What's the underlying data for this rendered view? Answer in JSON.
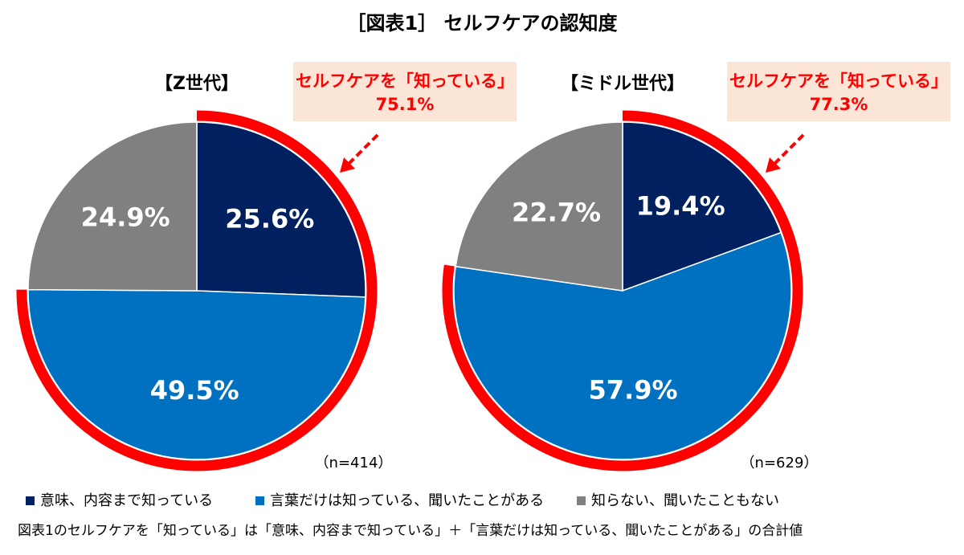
{
  "title": "［図表1］ セルフケアの認知度",
  "chart_data": [
    {
      "type": "pie",
      "title": "【Z世代】",
      "categories": [
        "意味、内容まで知っている",
        "言葉だけは知っている、聞いたことがある",
        "知らない、聞いたこともない"
      ],
      "values": [
        25.6,
        49.5,
        24.9
      ],
      "value_labels": [
        "25.6%",
        "49.5%",
        "24.9%"
      ],
      "colors": [
        "#002060",
        "#0070c0",
        "#808080"
      ],
      "callout": {
        "text": "セルフケアを「知っている」",
        "value": 75.1,
        "label": "75.1%",
        "color": "#ff0000"
      },
      "sample": "（n=414）"
    },
    {
      "type": "pie",
      "title": "【ミドル世代】",
      "categories": [
        "意味、内容まで知っている",
        "言葉だけは知っている、聞いたことがある",
        "知らない、聞いたこともない"
      ],
      "values": [
        19.4,
        57.9,
        22.7
      ],
      "value_labels": [
        "19.4%",
        "57.9%",
        "22.7%"
      ],
      "colors": [
        "#002060",
        "#0070c0",
        "#808080"
      ],
      "callout": {
        "text": "セルフケアを「知っている」",
        "value": 77.3,
        "label": "77.3%",
        "color": "#ff0000"
      },
      "sample": "（n=629）"
    }
  ],
  "note": "図表1のセルフケアを「知っている」は「意味、内容まで知っている」＋「言葉だけは知っている、聞いたことがある」の合計値"
}
